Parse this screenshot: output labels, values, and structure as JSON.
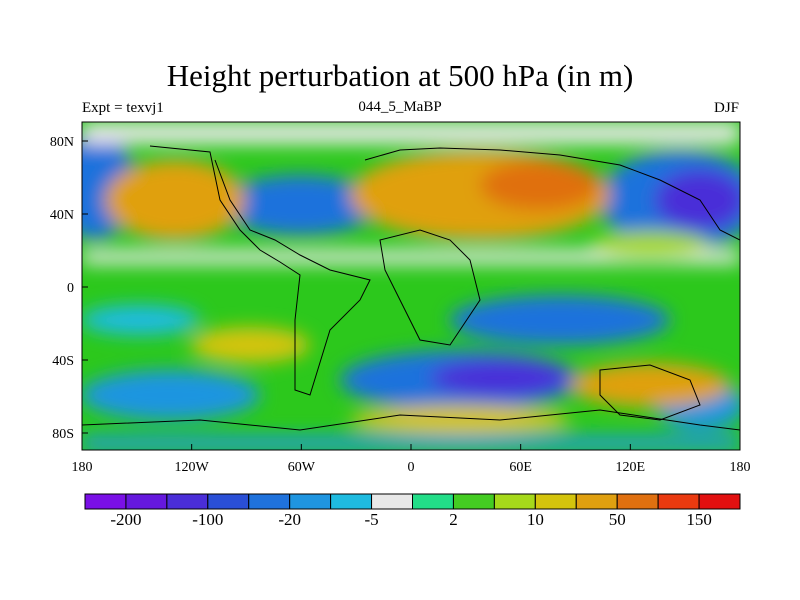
{
  "title": "Height perturbation at 500 hPa (in m)",
  "subtitle_left": "Expt = texvj1",
  "subtitle_center": "044_5_MaBP",
  "subtitle_right": "DJF",
  "x_ticks": [
    "180",
    "120W",
    "60W",
    "0",
    "60E",
    "120E",
    "180"
  ],
  "y_ticks": [
    "80N",
    "40N",
    "0",
    "40S",
    "80S"
  ],
  "colorbar": {
    "colors": [
      "#7a10e6",
      "#6518dd",
      "#4a2ed8",
      "#2a4fd6",
      "#1f72dc",
      "#1f95e0",
      "#1fbbe0",
      "#e8e8e8",
      "#22dd88",
      "#44cc22",
      "#a6d91a",
      "#d4c40c",
      "#e0a010",
      "#e07010",
      "#ea3a10",
      "#e21010"
    ],
    "labels": [
      "-200",
      "-100",
      "-20",
      "-5",
      "2",
      "10",
      "50",
      "150"
    ]
  }
}
